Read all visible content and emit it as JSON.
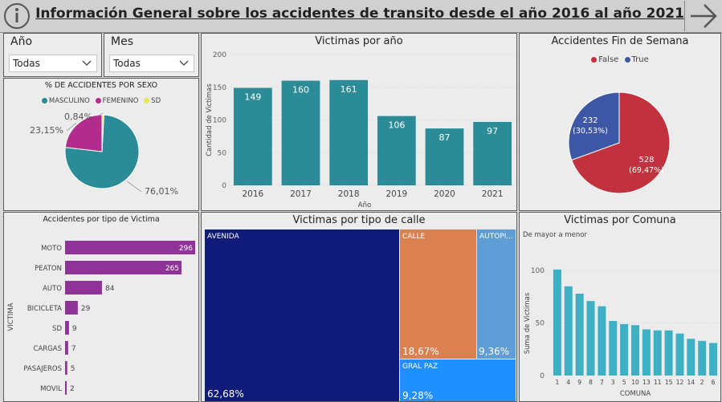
{
  "header": {
    "title": "Información General sobre los accidentes de transito desde el año 2016 al año 2021",
    "info_icon": "info-icon",
    "next_icon": "arrow-right-icon"
  },
  "filters": {
    "year": {
      "label": "Año",
      "value": "Todas"
    },
    "month": {
      "label": "Mes",
      "value": "Todas"
    }
  },
  "colors": {
    "teal": "#2b8c97",
    "magenta": "#b32b8c",
    "yellow": "#e8e84a",
    "red": "#c1323e",
    "blue": "#3e57a5",
    "purple": "#8f3398",
    "navy": "#101a78",
    "orange": "#db8051",
    "lightblue": "#5f9dd6",
    "azure": "#1e90ff",
    "bar_comuna": "#3eb0c3"
  },
  "chart_data": [
    {
      "id": "sexo",
      "type": "pie",
      "title": "% DE ACCIDENTES POR SEXO",
      "legend": [
        "MASCULINO",
        "FEMENINO",
        "SD"
      ],
      "slices": [
        {
          "name": "MASCULINO",
          "value": 76.01,
          "label": "76,01%"
        },
        {
          "name": "FEMENINO",
          "value": 23.15,
          "label": "23,15%"
        },
        {
          "name": "SD",
          "value": 0.84,
          "label": "0,84%"
        }
      ]
    },
    {
      "id": "victimas_anio",
      "type": "bar",
      "title": "Victimas por año",
      "xlabel": "Año",
      "ylabel": "Cantidad de Victimas",
      "categories": [
        "2016",
        "2017",
        "2018",
        "2019",
        "2020",
        "2021"
      ],
      "values": [
        149,
        160,
        161,
        106,
        87,
        97
      ],
      "ylim": [
        0,
        200
      ],
      "yticks": [
        "0",
        "50",
        "100",
        "150",
        "200"
      ]
    },
    {
      "id": "fin_semana",
      "type": "pie",
      "title": "Accidentes Fin de Semana",
      "legend": [
        "False",
        "True"
      ],
      "slices": [
        {
          "name": "False",
          "value": 528,
          "label": "528",
          "pct": "(69,47%)"
        },
        {
          "name": "True",
          "value": 232,
          "label": "232",
          "pct": "(30,53%)"
        }
      ]
    },
    {
      "id": "tipo_victima",
      "type": "bar",
      "orientation": "horizontal",
      "title": "Accidentes por tipo de Victima",
      "ylabel": "VICTIMA",
      "categories": [
        "MOTO",
        "PEATON",
        "AUTO",
        "BICICLETA",
        "SD",
        "CARGAS",
        "PASAJEROS",
        "MOVIL"
      ],
      "values": [
        296,
        265,
        84,
        29,
        9,
        7,
        5,
        2
      ]
    },
    {
      "id": "tipo_calle",
      "type": "treemap",
      "title": "Victimas por tipo de calle",
      "items": [
        {
          "name": "AVENIDA",
          "pct": "62,68%"
        },
        {
          "name": "CALLE",
          "pct": "18,67%"
        },
        {
          "name": "AUTOPI...",
          "pct": "9,36%"
        },
        {
          "name": "GRAL PAZ",
          "pct": "9,28%"
        }
      ]
    },
    {
      "id": "comuna",
      "type": "bar",
      "title": "Victimas por Comuna",
      "subtitle": "De mayor a menor",
      "xlabel": "COMUNA",
      "ylabel": "Suma de Victimas",
      "categories": [
        "1",
        "4",
        "9",
        "8",
        "7",
        "3",
        "5",
        "10",
        "13",
        "11",
        "15",
        "12",
        "14",
        "2",
        "6"
      ],
      "values": [
        101,
        85,
        78,
        71,
        66,
        52,
        49,
        48,
        44,
        43,
        43,
        40,
        35,
        33,
        31
      ],
      "ylim": [
        0,
        100
      ],
      "yticks": [
        "0",
        "50",
        "100"
      ]
    }
  ]
}
